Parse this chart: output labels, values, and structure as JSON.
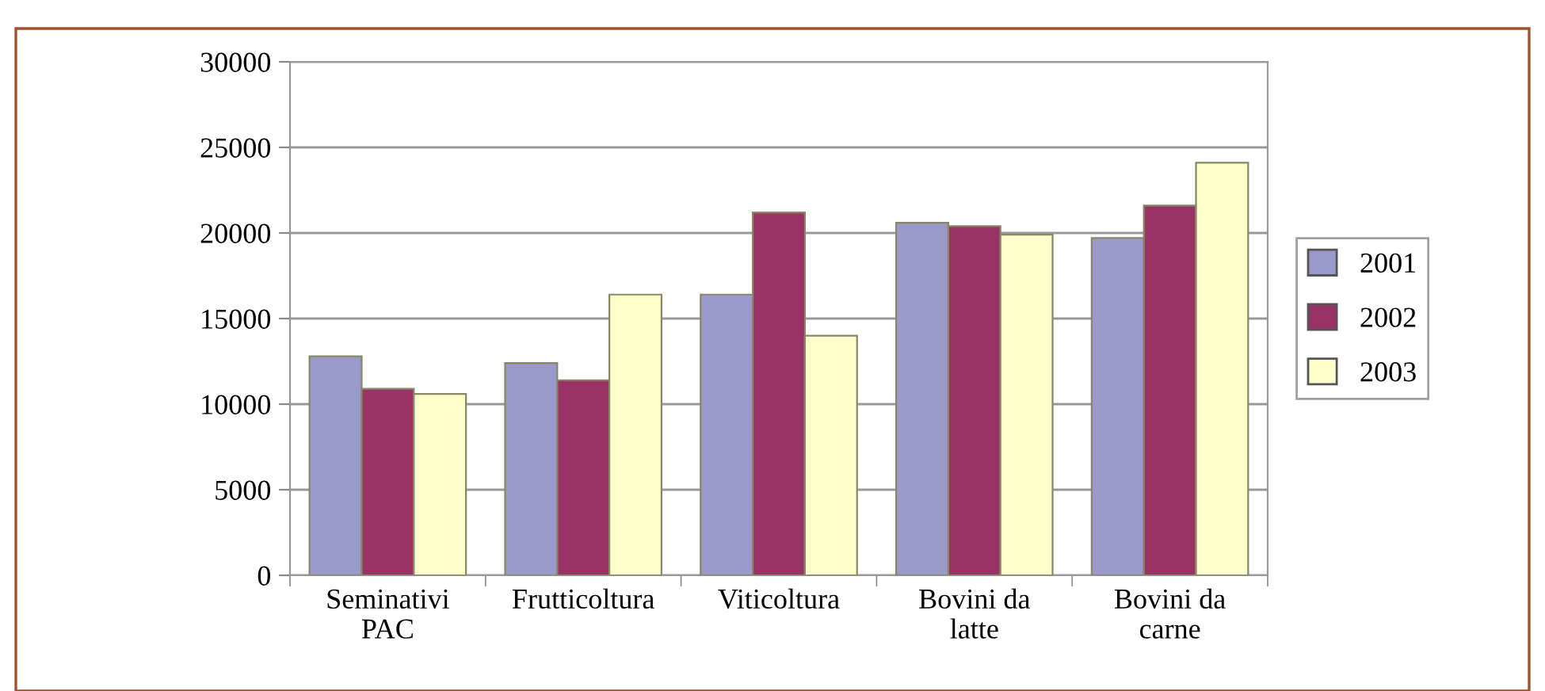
{
  "chart_data": {
    "type": "bar",
    "categories": [
      "Seminativi\nPAC",
      "Frutticoltura",
      "Viticoltura",
      "Bovini da\nlatte",
      "Bovini da\ncarne"
    ],
    "series": [
      {
        "name": "2001",
        "color": "#9999cc",
        "values": [
          12800,
          12400,
          16400,
          20600,
          19700
        ]
      },
      {
        "name": "2002",
        "color": "#993366",
        "values": [
          10900,
          11400,
          21200,
          20400,
          21600
        ]
      },
      {
        "name": "2003",
        "color": "#ffffcc",
        "values": [
          10600,
          16400,
          14000,
          19900,
          24100
        ]
      }
    ],
    "ylim": [
      0,
      30000
    ],
    "yticks": [
      0,
      5000,
      10000,
      15000,
      20000,
      25000,
      30000
    ],
    "grid": "y",
    "legend": "right"
  }
}
